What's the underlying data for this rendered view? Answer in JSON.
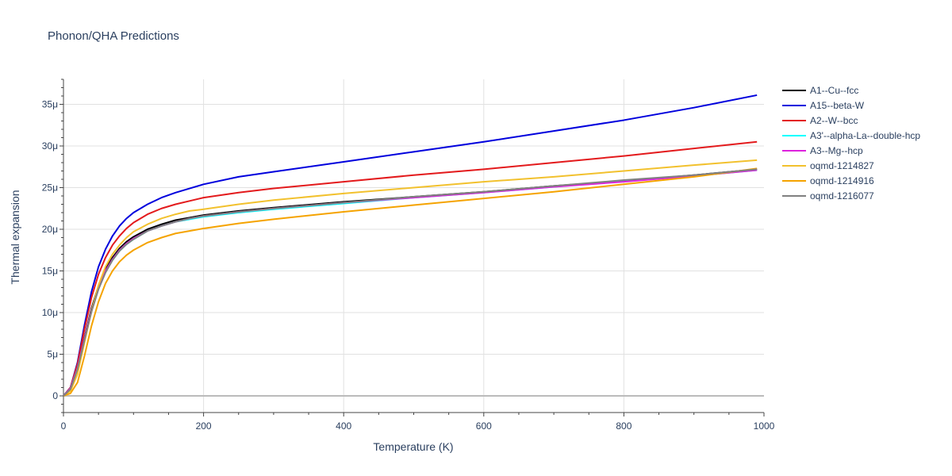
{
  "chart_data": {
    "type": "line",
    "title": "Phonon/QHA Predictions",
    "xlabel": "Temperature (K)",
    "ylabel": "Thermal expansion",
    "xlim": [
      0,
      1000
    ],
    "ylim": [
      -2e-06,
      3.8e-05
    ],
    "x_ticks": [
      0,
      200,
      400,
      600,
      800,
      1000
    ],
    "x_tick_labels": [
      "0",
      "200",
      "400",
      "600",
      "800",
      "1000"
    ],
    "y_ticks": [
      0,
      5e-06,
      1e-05,
      1.5e-05,
      2e-05,
      2.5e-05,
      3e-05,
      3.5e-05
    ],
    "y_tick_labels": [
      "0",
      "5μ",
      "10μ",
      "15μ",
      "20μ",
      "25μ",
      "30μ",
      "35μ"
    ],
    "grid": true,
    "legend_position": "right",
    "x": [
      0,
      10,
      20,
      30,
      40,
      50,
      60,
      70,
      80,
      90,
      100,
      120,
      140,
      160,
      180,
      200,
      250,
      300,
      400,
      500,
      600,
      700,
      800,
      900,
      990
    ],
    "series": [
      {
        "name": "A1--Cu--fcc",
        "color": "#000000",
        "values": [
          0,
          1e-06,
          3.5e-06,
          7e-06,
          1.05e-05,
          1.32e-05,
          1.52e-05,
          1.66e-05,
          1.77e-05,
          1.85e-05,
          1.91e-05,
          2e-05,
          2.06e-05,
          2.11e-05,
          2.14e-05,
          2.17e-05,
          2.22e-05,
          2.26e-05,
          2.33e-05,
          2.39e-05,
          2.45e-05,
          2.52e-05,
          2.58e-05,
          2.65e-05,
          2.72e-05
        ]
      },
      {
        "name": "A15--beta-W",
        "color": "#0000dd",
        "values": [
          0,
          1e-06,
          4e-06,
          8.5e-06,
          1.25e-05,
          1.55e-05,
          1.76e-05,
          1.92e-05,
          2.04e-05,
          2.13e-05,
          2.2e-05,
          2.3e-05,
          2.38e-05,
          2.44e-05,
          2.49e-05,
          2.54e-05,
          2.63e-05,
          2.69e-05,
          2.81e-05,
          2.93e-05,
          3.05e-05,
          3.18e-05,
          3.31e-05,
          3.46e-05,
          3.61e-05
        ]
      },
      {
        "name": "A2--W--bcc",
        "color": "#e31a1c",
        "values": [
          0,
          1e-06,
          3.8e-06,
          8e-06,
          1.18e-05,
          1.46e-05,
          1.66e-05,
          1.81e-05,
          1.92e-05,
          2.01e-05,
          2.08e-05,
          2.18e-05,
          2.25e-05,
          2.3e-05,
          2.34e-05,
          2.38e-05,
          2.44e-05,
          2.49e-05,
          2.57e-05,
          2.65e-05,
          2.72e-05,
          2.8e-05,
          2.88e-05,
          2.97e-05,
          3.05e-05
        ]
      },
      {
        "name": "A3'--alpha-La--double-hcp",
        "color": "#00ffff",
        "values": [
          0,
          9e-07,
          3.3e-06,
          6.8e-06,
          1.02e-05,
          1.29e-05,
          1.49e-05,
          1.63e-05,
          1.74e-05,
          1.82e-05,
          1.88e-05,
          1.98e-05,
          2.04e-05,
          2.09e-05,
          2.12e-05,
          2.15e-05,
          2.2e-05,
          2.24e-05,
          2.31e-05,
          2.38e-05,
          2.44e-05,
          2.51e-05,
          2.58e-05,
          2.64e-05,
          2.71e-05
        ]
      },
      {
        "name": "A3--Mg--hcp",
        "color": "#dd22dd",
        "values": [
          0,
          9e-07,
          3.3e-06,
          6.9e-06,
          1.03e-05,
          1.3e-05,
          1.5e-05,
          1.64e-05,
          1.75e-05,
          1.83e-05,
          1.89e-05,
          1.98e-05,
          2.04e-05,
          2.09e-05,
          2.13e-05,
          2.16e-05,
          2.21e-05,
          2.25e-05,
          2.32e-05,
          2.38e-05,
          2.44e-05,
          2.51e-05,
          2.57e-05,
          2.64e-05,
          2.71e-05
        ]
      },
      {
        "name": "oqmd-1214827",
        "color": "#f2c12e",
        "values": [
          0,
          6e-07,
          2.6e-06,
          6.4e-06,
          1.02e-05,
          1.33e-05,
          1.55e-05,
          1.7e-05,
          1.81e-05,
          1.9e-05,
          1.97e-05,
          2.06e-05,
          2.13e-05,
          2.18e-05,
          2.22e-05,
          2.24e-05,
          2.3e-05,
          2.35e-05,
          2.43e-05,
          2.5e-05,
          2.57e-05,
          2.63e-05,
          2.7e-05,
          2.77e-05,
          2.83e-05
        ]
      },
      {
        "name": "oqmd-1214916",
        "color": "#f5a300",
        "values": [
          0,
          3e-07,
          1.6e-06,
          4.8e-06,
          8.4e-06,
          1.13e-05,
          1.35e-05,
          1.5e-05,
          1.61e-05,
          1.69e-05,
          1.75e-05,
          1.84e-05,
          1.9e-05,
          1.95e-05,
          1.98e-05,
          2.01e-05,
          2.07e-05,
          2.12e-05,
          2.21e-05,
          2.29e-05,
          2.37e-05,
          2.45e-05,
          2.54e-05,
          2.63e-05,
          2.73e-05
        ]
      },
      {
        "name": "oqmd-1216077",
        "color": "#808080",
        "values": [
          0,
          8e-07,
          3.2e-06,
          6.7e-06,
          1.01e-05,
          1.28e-05,
          1.48e-05,
          1.63e-05,
          1.74e-05,
          1.82e-05,
          1.88e-05,
          1.98e-05,
          2.04e-05,
          2.09e-05,
          2.13e-05,
          2.16e-05,
          2.21e-05,
          2.25e-05,
          2.32e-05,
          2.39e-05,
          2.45e-05,
          2.52e-05,
          2.59e-05,
          2.65e-05,
          2.72e-05
        ]
      }
    ]
  }
}
